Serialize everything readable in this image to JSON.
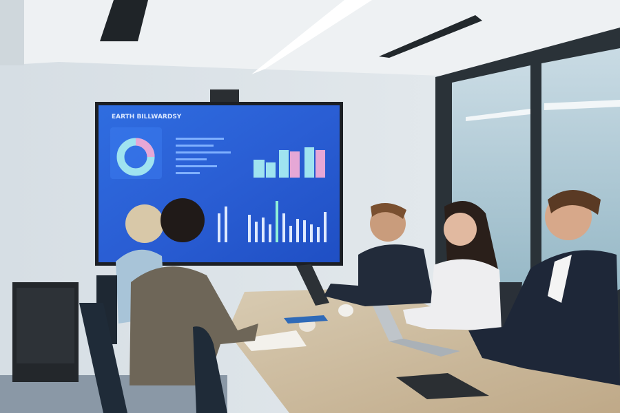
{
  "screen": {
    "title": "EARTH BILLWARDSY"
  }
}
